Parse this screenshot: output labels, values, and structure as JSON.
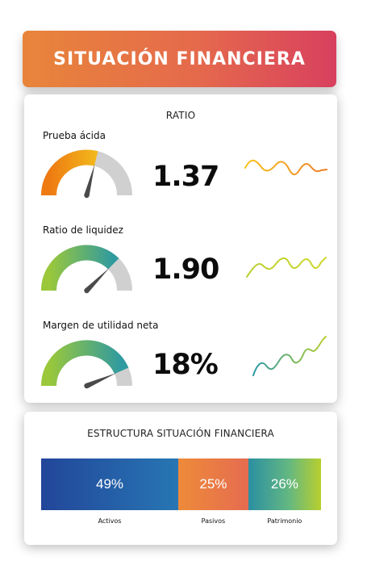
{
  "header": {
    "title": "SITUACIÓN FINANCIERA"
  },
  "ratio_section": {
    "title": "RATIO",
    "metrics": [
      {
        "label": "Prueba ácida",
        "value": "1.37",
        "gauge_level": 0.58,
        "gauge_colors": [
          "#ee7a12",
          "#f2b81b"
        ],
        "sparkline_colors": [
          "#f7c21a",
          "#ef7d22"
        ]
      },
      {
        "label": "Ratio de liquidez",
        "value": "1.90",
        "gauge_level": 0.75,
        "gauge_colors": [
          "#9bc83a",
          "#2f9aa0"
        ],
        "sparkline_colors": [
          "#b8cf2f",
          "#cfd82c"
        ]
      },
      {
        "label": "Margen de utilidad neta",
        "value": "18%",
        "gauge_level": 0.87,
        "gauge_colors": [
          "#9bc83a",
          "#2f9aa0"
        ],
        "sparkline_colors": [
          "#2b9aa6",
          "#b8cf2f"
        ]
      }
    ]
  },
  "structure_section": {
    "title": "ESTRUCTURA SITUACIÓN FINANCIERA",
    "segments": [
      {
        "key": "activos",
        "value": "49%",
        "label": "Activos",
        "share": 49
      },
      {
        "key": "pasivos",
        "value": "25%",
        "label": "Pasivos",
        "share": 25
      },
      {
        "key": "patrimonio",
        "value": "26%",
        "label": "Patrimonio",
        "share": 26
      }
    ]
  }
}
